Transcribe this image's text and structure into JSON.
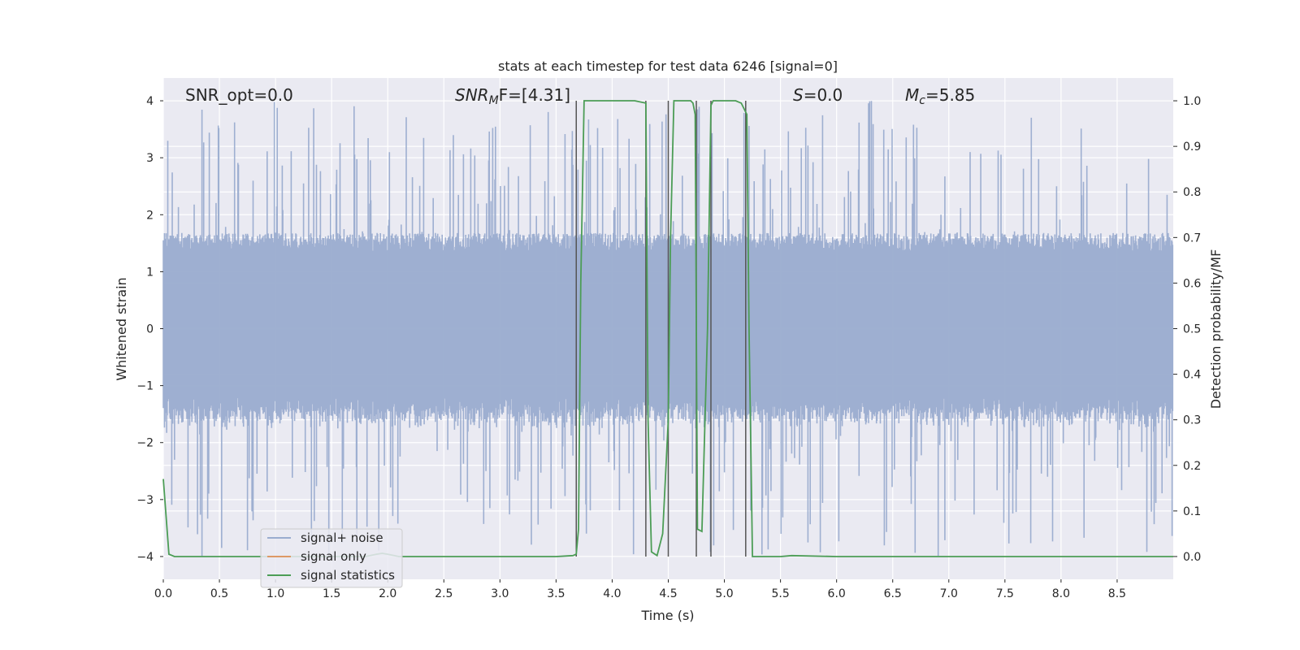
{
  "chart_data": {
    "type": "line",
    "title": "stats at each timestep for test data 6246 [signal=0]",
    "xlabel": "Time (s)",
    "ylabel": "Whitened strain",
    "ylabel_right": "Detection probability/MF",
    "xlim": [
      0,
      9.0
    ],
    "ylim": [
      -4.4,
      4.4
    ],
    "ylim_right": [
      -0.05,
      1.05
    ],
    "x_ticks": [
      "0.0",
      "0.5",
      "1.0",
      "1.5",
      "2.0",
      "2.5",
      "3.0",
      "3.5",
      "4.0",
      "4.5",
      "5.0",
      "5.5",
      "6.0",
      "6.5",
      "7.0",
      "7.5",
      "8.0",
      "8.5"
    ],
    "x_tick_values": [
      0,
      0.5,
      1.0,
      1.5,
      2.0,
      2.5,
      3.0,
      3.5,
      4.0,
      4.5,
      5.0,
      5.5,
      6.0,
      6.5,
      7.0,
      7.5,
      8.0,
      8.5
    ],
    "y_ticks": [
      "4",
      "3",
      "2",
      "1",
      "0",
      "−1",
      "−2",
      "−3",
      "−4"
    ],
    "y_tick_values": [
      4,
      3,
      2,
      1,
      0,
      -1,
      -2,
      -3,
      -4
    ],
    "y_ticks_right": [
      "1.0",
      "0.9",
      "0.8",
      "0.7",
      "0.6",
      "0.5",
      "0.4",
      "0.3",
      "0.2",
      "0.1",
      "0.0"
    ],
    "y_tick_values_right": [
      1.0,
      0.9,
      0.8,
      0.7,
      0.6,
      0.5,
      0.4,
      0.3,
      0.2,
      0.1,
      0.0
    ],
    "grid": true,
    "legend_position": "lower-left",
    "annotations": {
      "snr_opt": "SNR_opt=0.0",
      "snr_mf_main": "SNR",
      "snr_mf_sub": "M",
      "snr_mf_rest": "F=[4.31]",
      "s_main": "S",
      "s_rest": "=0.0",
      "mc_main": "M",
      "mc_sub": "c",
      "mc_rest": "=5.85"
    },
    "series": [
      {
        "name": "signal+ noise",
        "color": "#9aaccf",
        "style": "noise-band",
        "typical_amplitude": 1.6,
        "max_abs": 4.0,
        "samples_per_second": 200
      },
      {
        "name": "signal only",
        "color": "#dd9966",
        "values": []
      },
      {
        "name": "signal statistics",
        "color": "#4c9d56",
        "axis": "right",
        "x": [
          0.0,
          0.05,
          0.1,
          0.2,
          0.5,
          1.0,
          1.5,
          1.8,
          1.9,
          1.95,
          2.0,
          2.1,
          2.5,
          3.0,
          3.5,
          3.65,
          3.68,
          3.7,
          3.72,
          3.75,
          3.8,
          3.9,
          4.0,
          4.1,
          4.2,
          4.3,
          4.32,
          4.35,
          4.4,
          4.45,
          4.5,
          4.52,
          4.55,
          4.6,
          4.7,
          4.72,
          4.74,
          4.76,
          4.8,
          4.85,
          4.88,
          4.9,
          5.0,
          5.1,
          5.15,
          5.2,
          5.22,
          5.25,
          5.3,
          5.4,
          5.5,
          5.6,
          6.0,
          7.0,
          8.0,
          9.0
        ],
        "values": [
          0.17,
          0.005,
          0.0,
          0.0,
          0.0,
          0.0,
          0.0,
          0.0,
          0.005,
          0.007,
          0.005,
          0.0,
          0.0,
          0.0,
          0.0,
          0.002,
          0.005,
          0.06,
          0.6,
          1.0,
          1.0,
          1.0,
          1.0,
          1.0,
          1.0,
          0.995,
          0.3,
          0.01,
          0.002,
          0.05,
          0.3,
          0.7,
          1.0,
          1.0,
          1.0,
          0.995,
          0.97,
          0.06,
          0.055,
          0.5,
          0.99,
          1.0,
          1.0,
          1.0,
          0.995,
          0.97,
          0.5,
          0.0,
          0.0,
          0.0,
          0.0,
          0.002,
          0.0,
          0.0,
          0.0,
          0.0
        ]
      }
    ],
    "vertical_markers": [
      3.68,
      4.3,
      4.5,
      4.75,
      4.88,
      5.19
    ],
    "marker_color": "#555555"
  }
}
